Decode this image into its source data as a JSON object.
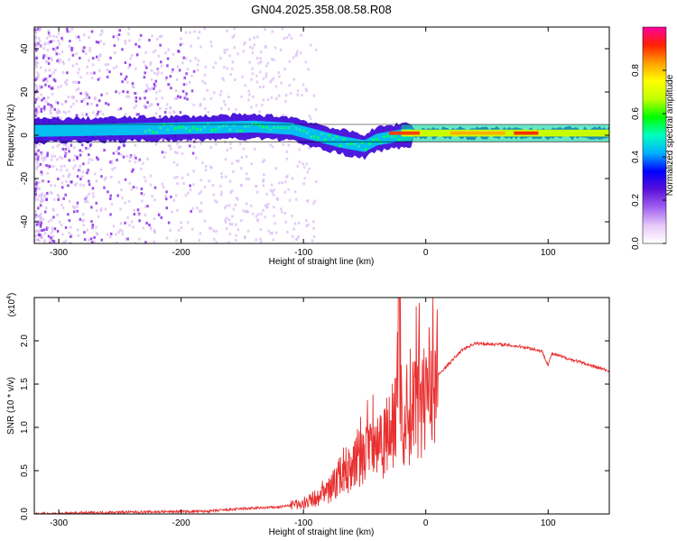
{
  "figure": {
    "title": "GN04.2025.358.08.58.R08"
  },
  "chart_data": [
    {
      "type": "heatmap",
      "name": "spectrogram",
      "title": "GN04.2025.358.08.58.R08",
      "xlabel": "Height of straight line (km)",
      "ylabel": "Frequency (Hz)",
      "xlim": [
        -320,
        150
      ],
      "ylim": [
        -50,
        50
      ],
      "xticks": [
        -300,
        -200,
        -100,
        0,
        100
      ],
      "yticks": [
        -40,
        -20,
        0,
        20,
        40
      ],
      "colorbar": {
        "label": "Normalized spectral amplitude",
        "range": [
          0,
          1
        ],
        "ticks": [
          "0.0",
          "0.2",
          "0.4",
          "0.6",
          "0.8"
        ],
        "colormap": [
          "#ffffff",
          "#e8c8f8",
          "#a060f0",
          "#5a10d8",
          "#0000ff",
          "#00b0ff",
          "#00ffc0",
          "#00ff00",
          "#c0ff00",
          "#ffff00",
          "#ffa000",
          "#ff2000",
          "#ff00a0"
        ]
      },
      "band_centerline_hz": [
        {
          "x": -320,
          "y": 2
        },
        {
          "x": -220,
          "y": 3
        },
        {
          "x": -140,
          "y": 4
        },
        {
          "x": -110,
          "y": 3
        },
        {
          "x": -90,
          "y": 0
        },
        {
          "x": -70,
          "y": -3
        },
        {
          "x": -50,
          "y": -5
        },
        {
          "x": -40,
          "y": -2
        },
        {
          "x": -20,
          "y": 0
        },
        {
          "x": 0,
          "y": 1
        },
        {
          "x": 150,
          "y": 1
        }
      ],
      "tone_line_hz": 1,
      "tone_line_start_km": -20
    },
    {
      "type": "line",
      "name": "snr",
      "xlabel": "Height of straight line (km)",
      "ylabel": "SNR (10 * v/v)",
      "y_multiplier": "(x10",
      "y_multiplier_exp": "4",
      "xlim": [
        -320,
        150
      ],
      "ylim": [
        0,
        2.5
      ],
      "xticks": [
        -300,
        -200,
        -100,
        0,
        100
      ],
      "yticks": [
        "0.0",
        "0.5",
        "1.0",
        "1.5",
        "2.0"
      ],
      "series": [
        {
          "name": "SNR",
          "color": "#e83030",
          "points": [
            {
              "x": -320,
              "y": 0.0
            },
            {
              "x": -250,
              "y": 0.02
            },
            {
              "x": -180,
              "y": 0.03
            },
            {
              "x": -150,
              "y": 0.06
            },
            {
              "x": -120,
              "y": 0.08
            },
            {
              "x": -100,
              "y": 0.12
            },
            {
              "x": -80,
              "y": 0.25
            },
            {
              "x": -70,
              "y": 0.45
            },
            {
              "x": -60,
              "y": 0.55
            },
            {
              "x": -50,
              "y": 0.7
            },
            {
              "x": -40,
              "y": 0.85
            },
            {
              "x": -30,
              "y": 0.95
            },
            {
              "x": -25,
              "y": 1.05
            },
            {
              "x": -22,
              "y": 2.4
            },
            {
              "x": -19,
              "y": 0.95
            },
            {
              "x": -15,
              "y": 1.2
            },
            {
              "x": -10,
              "y": 1.3
            },
            {
              "x": 0,
              "y": 1.45
            },
            {
              "x": 10,
              "y": 1.6
            },
            {
              "x": 20,
              "y": 1.75
            },
            {
              "x": 30,
              "y": 1.9
            },
            {
              "x": 40,
              "y": 1.97
            },
            {
              "x": 60,
              "y": 1.96
            },
            {
              "x": 80,
              "y": 1.93
            },
            {
              "x": 95,
              "y": 1.88
            },
            {
              "x": 100,
              "y": 1.72
            },
            {
              "x": 103,
              "y": 1.85
            },
            {
              "x": 120,
              "y": 1.78
            },
            {
              "x": 150,
              "y": 1.65
            }
          ]
        }
      ]
    }
  ]
}
